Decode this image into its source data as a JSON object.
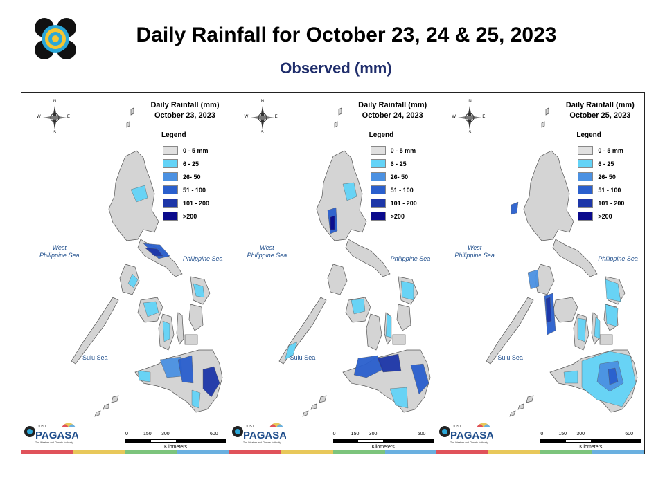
{
  "header": {
    "title": "Daily Rainfall for October 23, 24 & 25, 2023",
    "subtitle": "Observed (mm)"
  },
  "legend": {
    "title": "Legend",
    "classes": [
      {
        "label": "0 - 5 mm",
        "color": "#e0e0e0"
      },
      {
        "label": "6 - 25",
        "color": "#63d3f7"
      },
      {
        "label": "26- 50",
        "color": "#4b91e2"
      },
      {
        "label": "51 - 100",
        "color": "#2a5fcd"
      },
      {
        "label": "101 - 200",
        "color": "#1d36a8"
      },
      {
        "label": ">200",
        "color": "#0a0a8c"
      }
    ]
  },
  "labels": {
    "west_sea_1": "West",
    "west_sea_2": "Philippine Sea",
    "phil_sea": "Philippine Sea",
    "sulu_sea": "Sulu Sea",
    "compass_n": "N",
    "compass_s": "S",
    "compass_e": "E",
    "compass_w": "W",
    "scale_ticks": [
      "0",
      "150",
      "300",
      "600"
    ],
    "scale_unit": "Kilometers",
    "logo_text": "PAGASA",
    "logo_small": "DOST",
    "logo_tag": "The Weather and Climate Authority"
  },
  "panels": [
    {
      "heading": "Daily Rainfall (mm)",
      "date": "October 23, 2023"
    },
    {
      "heading": "Daily Rainfall (mm)",
      "date": "October 24, 2023"
    },
    {
      "heading": "Daily Rainfall (mm)",
      "date": "October 25, 2023"
    }
  ],
  "colors": {
    "land": "#d4d4d4",
    "stripe": [
      "#e0525a",
      "#e8c85a",
      "#7cc47c",
      "#6ab0e0"
    ]
  }
}
